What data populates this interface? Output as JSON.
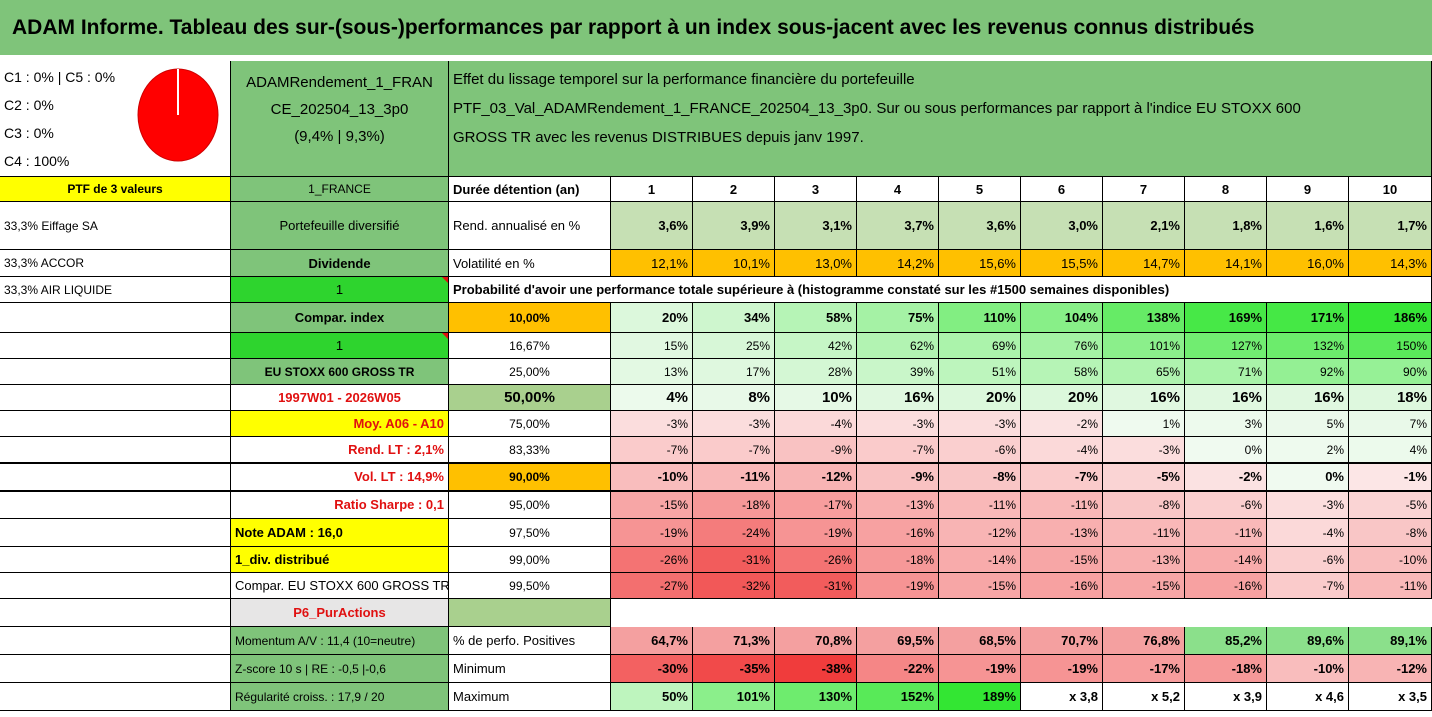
{
  "title": "ADAM Informe. Tableau des sur-(sous-)performances par rapport à un index sous-jacent avec les revenus connus distribués",
  "legend": [
    "C1 : 0% | C5 : 0%",
    "C2 : 0%",
    "C3 : 0%",
    "C4 : 100%"
  ],
  "pie": {
    "slice_color": "#ff0000",
    "share": "100%"
  },
  "fund": {
    "name_line1": "ADAMRendement_1_FRAN",
    "name_line2": "CE_202504_13_3p0",
    "name_line3": "(9,4% | 9,3%)"
  },
  "description": {
    "line1": "Effet du lissage temporel sur la performance financière du portefeuille",
    "line2": "PTF_03_Val_ADAMRendement_1_FRANCE_202504_13_3p0. Sur ou sous performances par rapport à l'indice EU STOXX 600",
    "line3": "GROSS TR avec les revenus DISTRIBUES depuis janv 1997."
  },
  "left": {
    "ptf": "PTF de 3 valeurs",
    "france": "1_FRANCE",
    "holdings": [
      "33,3% Eiffage SA",
      "33,3% ACCOR",
      "33,3% AIR LIQUIDE"
    ],
    "port_div": "Portefeuille diversifié",
    "dividende": "Dividende",
    "one_a": "1",
    "compar_index": "Compar. index",
    "one_b": "1",
    "index_name": "EU STOXX 600 GROSS TR",
    "period": "1997W01 - 2026W05",
    "moy": "Moy. A06 - A10",
    "rend_lt": "Rend. LT : 2,1%",
    "vol_lt": "Vol. LT : 14,9%",
    "sharpe": "Ratio Sharpe : 0,1",
    "note": "Note ADAM : 16,0",
    "div": "1_div. distribué",
    "compar_full": "Compar. EU STOXX 600 GROSS TR",
    "p6": "P6_PurActions",
    "momentum": "Momentum A/V : 11,4 (10=neutre)",
    "zscore": "Z-score 10 s | RE : -0,5 |-0,6",
    "regularite": "Régularité croiss. : 17,9 / 20"
  },
  "table": {
    "duree_label": "Durée détention (an)",
    "years": [
      "1",
      "2",
      "3",
      "4",
      "5",
      "6",
      "7",
      "8",
      "9",
      "10"
    ],
    "rend_label": "Rend. annualisé en %",
    "rend": [
      "3,6%",
      "3,9%",
      "3,1%",
      "3,7%",
      "3,6%",
      "3,0%",
      "2,1%",
      "1,8%",
      "1,6%",
      "1,7%"
    ],
    "vol_label": "Volatilité en %",
    "vol": [
      "12,1%",
      "10,1%",
      "13,0%",
      "14,2%",
      "15,6%",
      "15,5%",
      "14,7%",
      "14,1%",
      "16,0%",
      "14,3%"
    ],
    "prob_header": "Probabilité d'avoir une performance totale supérieure à (histogramme constaté sur les #1500 semaines disponibles)",
    "prob_rows": [
      {
        "p": "10,00%",
        "v": [
          "20%",
          "34%",
          "58%",
          "75%",
          "110%",
          "104%",
          "138%",
          "169%",
          "171%",
          "186%"
        ]
      },
      {
        "p": "16,67%",
        "v": [
          "15%",
          "25%",
          "42%",
          "62%",
          "69%",
          "76%",
          "101%",
          "127%",
          "132%",
          "150%"
        ]
      },
      {
        "p": "25,00%",
        "v": [
          "13%",
          "17%",
          "28%",
          "39%",
          "51%",
          "58%",
          "65%",
          "71%",
          "92%",
          "90%"
        ]
      },
      {
        "p": "50,00%",
        "v": [
          "4%",
          "8%",
          "10%",
          "16%",
          "20%",
          "20%",
          "16%",
          "16%",
          "16%",
          "18%"
        ]
      },
      {
        "p": "75,00%",
        "v": [
          "-3%",
          "-3%",
          "-4%",
          "-3%",
          "-3%",
          "-2%",
          "1%",
          "3%",
          "5%",
          "7%"
        ]
      },
      {
        "p": "83,33%",
        "v": [
          "-7%",
          "-7%",
          "-9%",
          "-7%",
          "-6%",
          "-4%",
          "-3%",
          "0%",
          "2%",
          "4%"
        ]
      },
      {
        "p": "90,00%",
        "v": [
          "-10%",
          "-11%",
          "-12%",
          "-9%",
          "-8%",
          "-7%",
          "-5%",
          "-2%",
          "0%",
          "-1%"
        ]
      },
      {
        "p": "95,00%",
        "v": [
          "-15%",
          "-18%",
          "-17%",
          "-13%",
          "-11%",
          "-11%",
          "-8%",
          "-6%",
          "-3%",
          "-5%"
        ]
      },
      {
        "p": "97,50%",
        "v": [
          "-19%",
          "-24%",
          "-19%",
          "-16%",
          "-12%",
          "-13%",
          "-11%",
          "-11%",
          "-4%",
          "-8%"
        ]
      },
      {
        "p": "99,00%",
        "v": [
          "-26%",
          "-31%",
          "-26%",
          "-18%",
          "-14%",
          "-15%",
          "-13%",
          "-14%",
          "-6%",
          "-10%"
        ]
      },
      {
        "p": "99,50%",
        "v": [
          "-27%",
          "-32%",
          "-31%",
          "-19%",
          "-15%",
          "-16%",
          "-15%",
          "-16%",
          "-7%",
          "-11%"
        ]
      }
    ],
    "pos_label": "% de perfo. Positives",
    "pos": [
      "64,7%",
      "71,3%",
      "70,8%",
      "69,5%",
      "68,5%",
      "70,7%",
      "76,8%",
      "85,2%",
      "89,6%",
      "89,1%"
    ],
    "min_label": "Minimum",
    "min": [
      "-30%",
      "-35%",
      "-38%",
      "-22%",
      "-19%",
      "-19%",
      "-17%",
      "-18%",
      "-10%",
      "-12%"
    ],
    "max_label": "Maximum",
    "max": [
      "50%",
      "101%",
      "130%",
      "152%",
      "189%",
      "x 3,8",
      "x 5,2",
      "x 3,9",
      "x 4,6",
      "x 3,5"
    ]
  },
  "colors": {
    "green_header": "#7fc47a",
    "yellow": "#ffff00",
    "orange": "#ffc000",
    "red_text": "#e01010"
  }
}
